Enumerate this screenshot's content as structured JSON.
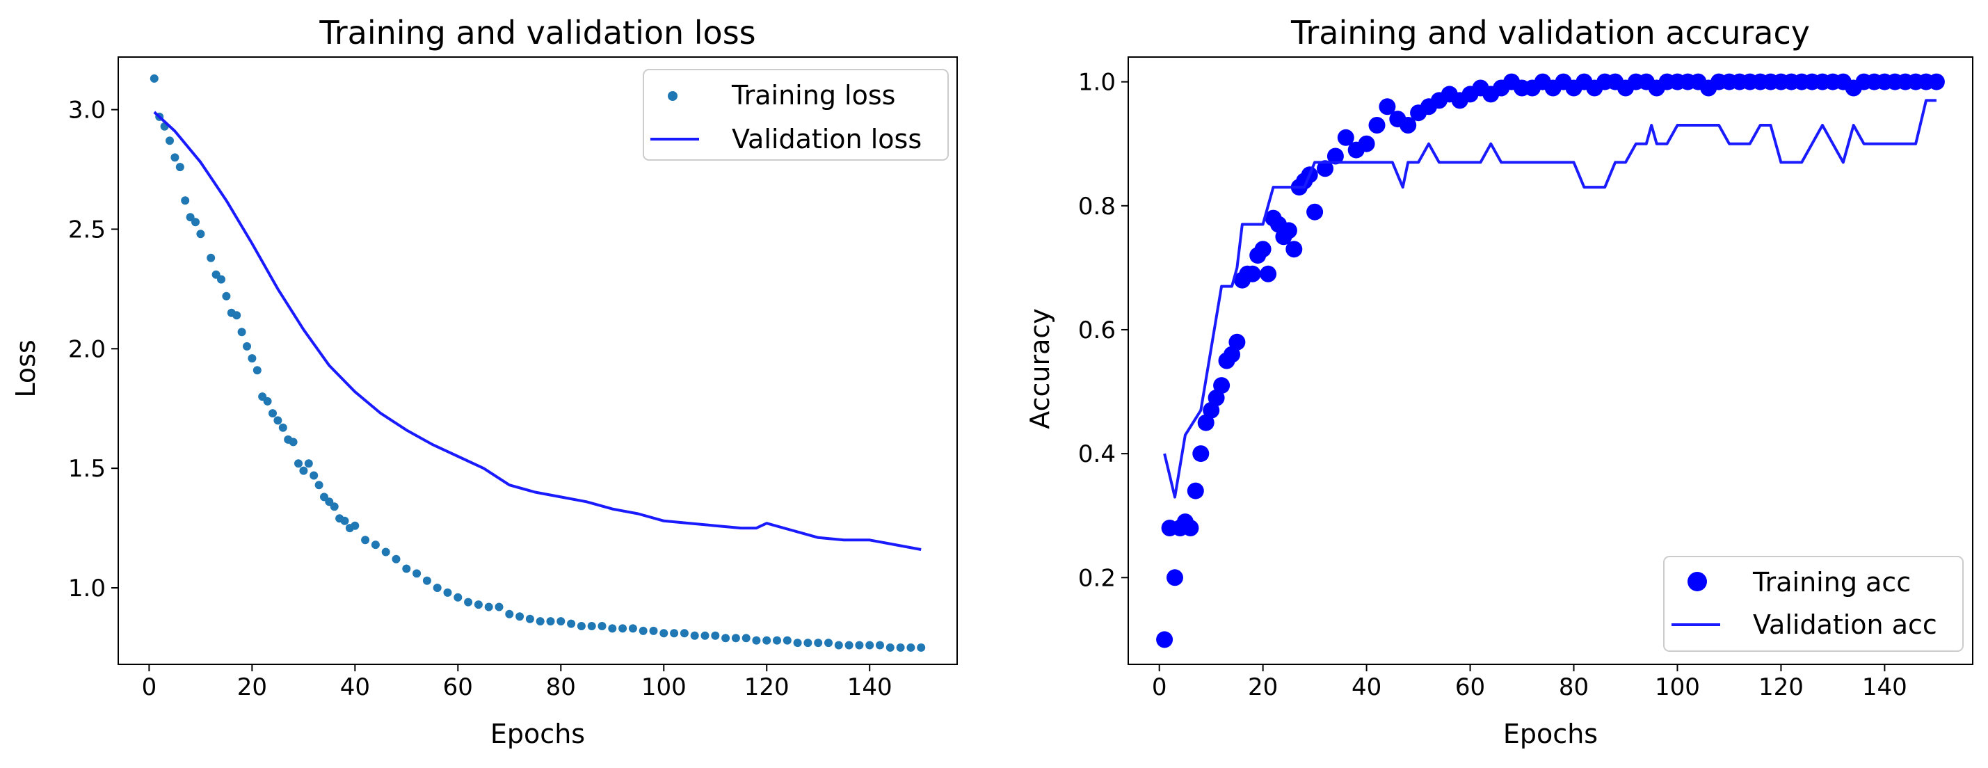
{
  "chart_data": [
    {
      "type": "line",
      "title": "Training and validation loss",
      "xlabel": "Epochs",
      "ylabel": "Loss",
      "xlim": [
        -6,
        157
      ],
      "ylim": [
        0.68,
        3.22
      ],
      "xticks": [
        0,
        20,
        40,
        60,
        80,
        100,
        120,
        140
      ],
      "yticks": [
        1.0,
        1.5,
        2.0,
        2.5,
        3.0
      ],
      "ytick_labels": [
        "1.0",
        "1.5",
        "2.0",
        "2.5",
        "3.0"
      ],
      "legend_position": "top-right",
      "series": [
        {
          "name": "Training loss",
          "style": "dots",
          "color": "#1f77b4",
          "points": [
            [
              1,
              3.13
            ],
            [
              2,
              2.97
            ],
            [
              3,
              2.93
            ],
            [
              4,
              2.87
            ],
            [
              5,
              2.8
            ],
            [
              6,
              2.76
            ],
            [
              7,
              2.62
            ],
            [
              8,
              2.55
            ],
            [
              9,
              2.53
            ],
            [
              10,
              2.48
            ],
            [
              12,
              2.38
            ],
            [
              13,
              2.31
            ],
            [
              14,
              2.29
            ],
            [
              15,
              2.22
            ],
            [
              16,
              2.15
            ],
            [
              17,
              2.14
            ],
            [
              18,
              2.07
            ],
            [
              19,
              2.01
            ],
            [
              20,
              1.96
            ],
            [
              21,
              1.91
            ],
            [
              22,
              1.8
            ],
            [
              23,
              1.78
            ],
            [
              24,
              1.73
            ],
            [
              25,
              1.7
            ],
            [
              26,
              1.67
            ],
            [
              27,
              1.62
            ],
            [
              28,
              1.61
            ],
            [
              29,
              1.52
            ],
            [
              30,
              1.49
            ],
            [
              31,
              1.52
            ],
            [
              32,
              1.47
            ],
            [
              33,
              1.43
            ],
            [
              34,
              1.38
            ],
            [
              35,
              1.36
            ],
            [
              36,
              1.34
            ],
            [
              37,
              1.29
            ],
            [
              38,
              1.28
            ],
            [
              39,
              1.25
            ],
            [
              40,
              1.26
            ],
            [
              42,
              1.2
            ],
            [
              44,
              1.18
            ],
            [
              46,
              1.15
            ],
            [
              48,
              1.12
            ],
            [
              50,
              1.08
            ],
            [
              52,
              1.06
            ],
            [
              54,
              1.03
            ],
            [
              56,
              1.0
            ],
            [
              58,
              0.98
            ],
            [
              60,
              0.96
            ],
            [
              62,
              0.94
            ],
            [
              64,
              0.93
            ],
            [
              66,
              0.92
            ],
            [
              68,
              0.92
            ],
            [
              70,
              0.89
            ],
            [
              72,
              0.88
            ],
            [
              74,
              0.87
            ],
            [
              76,
              0.86
            ],
            [
              78,
              0.86
            ],
            [
              80,
              0.86
            ],
            [
              82,
              0.85
            ],
            [
              84,
              0.84
            ],
            [
              86,
              0.84
            ],
            [
              88,
              0.84
            ],
            [
              90,
              0.83
            ],
            [
              92,
              0.83
            ],
            [
              94,
              0.83
            ],
            [
              96,
              0.82
            ],
            [
              98,
              0.82
            ],
            [
              100,
              0.81
            ],
            [
              102,
              0.81
            ],
            [
              104,
              0.81
            ],
            [
              106,
              0.8
            ],
            [
              108,
              0.8
            ],
            [
              110,
              0.8
            ],
            [
              112,
              0.79
            ],
            [
              114,
              0.79
            ],
            [
              116,
              0.79
            ],
            [
              118,
              0.78
            ],
            [
              120,
              0.78
            ],
            [
              122,
              0.78
            ],
            [
              124,
              0.78
            ],
            [
              126,
              0.77
            ],
            [
              128,
              0.77
            ],
            [
              130,
              0.77
            ],
            [
              132,
              0.77
            ],
            [
              134,
              0.76
            ],
            [
              136,
              0.76
            ],
            [
              138,
              0.76
            ],
            [
              140,
              0.76
            ],
            [
              142,
              0.76
            ],
            [
              144,
              0.75
            ],
            [
              146,
              0.75
            ],
            [
              148,
              0.75
            ],
            [
              150,
              0.75
            ]
          ]
        },
        {
          "name": "Validation loss",
          "style": "line",
          "color": "#1a1aff",
          "points": [
            [
              1,
              2.99
            ],
            [
              5,
              2.91
            ],
            [
              10,
              2.78
            ],
            [
              15,
              2.62
            ],
            [
              20,
              2.44
            ],
            [
              25,
              2.25
            ],
            [
              30,
              2.08
            ],
            [
              35,
              1.93
            ],
            [
              40,
              1.82
            ],
            [
              45,
              1.73
            ],
            [
              50,
              1.66
            ],
            [
              55,
              1.6
            ],
            [
              60,
              1.55
            ],
            [
              65,
              1.5
            ],
            [
              70,
              1.43
            ],
            [
              75,
              1.4
            ],
            [
              80,
              1.38
            ],
            [
              85,
              1.36
            ],
            [
              90,
              1.33
            ],
            [
              95,
              1.31
            ],
            [
              100,
              1.28
            ],
            [
              105,
              1.27
            ],
            [
              110,
              1.26
            ],
            [
              115,
              1.25
            ],
            [
              118,
              1.25
            ],
            [
              120,
              1.27
            ],
            [
              125,
              1.24
            ],
            [
              130,
              1.21
            ],
            [
              135,
              1.2
            ],
            [
              140,
              1.2
            ],
            [
              145,
              1.18
            ],
            [
              150,
              1.16
            ]
          ]
        }
      ]
    },
    {
      "type": "line",
      "title": "Training and validation accuracy",
      "xlabel": "Epochs",
      "ylabel": "Accuracy",
      "xlim": [
        -6,
        157
      ],
      "ylim": [
        0.06,
        1.04
      ],
      "xticks": [
        0,
        20,
        40,
        60,
        80,
        100,
        120,
        140
      ],
      "yticks": [
        0.2,
        0.4,
        0.6,
        0.8,
        1.0
      ],
      "ytick_labels": [
        "0.2",
        "0.4",
        "0.6",
        "0.8",
        "1.0"
      ],
      "legend_position": "bottom-right",
      "series": [
        {
          "name": "Training acc",
          "style": "dots",
          "color": "#0000ff",
          "points": [
            [
              1,
              0.1
            ],
            [
              2,
              0.28
            ],
            [
              3,
              0.2
            ],
            [
              4,
              0.28
            ],
            [
              5,
              0.29
            ],
            [
              6,
              0.28
            ],
            [
              7,
              0.34
            ],
            [
              8,
              0.4
            ],
            [
              9,
              0.45
            ],
            [
              10,
              0.47
            ],
            [
              11,
              0.49
            ],
            [
              12,
              0.51
            ],
            [
              13,
              0.55
            ],
            [
              14,
              0.56
            ],
            [
              15,
              0.58
            ],
            [
              16,
              0.68
            ],
            [
              17,
              0.69
            ],
            [
              18,
              0.69
            ],
            [
              19,
              0.72
            ],
            [
              20,
              0.73
            ],
            [
              21,
              0.69
            ],
            [
              22,
              0.78
            ],
            [
              23,
              0.77
            ],
            [
              24,
              0.75
            ],
            [
              25,
              0.76
            ],
            [
              26,
              0.73
            ],
            [
              27,
              0.83
            ],
            [
              28,
              0.84
            ],
            [
              29,
              0.85
            ],
            [
              30,
              0.79
            ],
            [
              32,
              0.86
            ],
            [
              34,
              0.88
            ],
            [
              36,
              0.91
            ],
            [
              38,
              0.89
            ],
            [
              40,
              0.9
            ],
            [
              42,
              0.93
            ],
            [
              44,
              0.96
            ],
            [
              46,
              0.94
            ],
            [
              48,
              0.93
            ],
            [
              50,
              0.95
            ],
            [
              52,
              0.96
            ],
            [
              54,
              0.97
            ],
            [
              56,
              0.98
            ],
            [
              58,
              0.97
            ],
            [
              60,
              0.98
            ],
            [
              62,
              0.99
            ],
            [
              64,
              0.98
            ],
            [
              66,
              0.99
            ],
            [
              68,
              1.0
            ],
            [
              70,
              0.99
            ],
            [
              72,
              0.99
            ],
            [
              74,
              1.0
            ],
            [
              76,
              0.99
            ],
            [
              78,
              1.0
            ],
            [
              80,
              0.99
            ],
            [
              82,
              1.0
            ],
            [
              84,
              0.99
            ],
            [
              86,
              1.0
            ],
            [
              88,
              1.0
            ],
            [
              90,
              0.99
            ],
            [
              92,
              1.0
            ],
            [
              94,
              1.0
            ],
            [
              96,
              0.99
            ],
            [
              98,
              1.0
            ],
            [
              100,
              1.0
            ],
            [
              102,
              1.0
            ],
            [
              104,
              1.0
            ],
            [
              106,
              0.99
            ],
            [
              108,
              1.0
            ],
            [
              110,
              1.0
            ],
            [
              112,
              1.0
            ],
            [
              114,
              1.0
            ],
            [
              116,
              1.0
            ],
            [
              118,
              1.0
            ],
            [
              120,
              1.0
            ],
            [
              122,
              1.0
            ],
            [
              124,
              1.0
            ],
            [
              126,
              1.0
            ],
            [
              128,
              1.0
            ],
            [
              130,
              1.0
            ],
            [
              132,
              1.0
            ],
            [
              134,
              0.99
            ],
            [
              136,
              1.0
            ],
            [
              138,
              1.0
            ],
            [
              140,
              1.0
            ],
            [
              142,
              1.0
            ],
            [
              144,
              1.0
            ],
            [
              146,
              1.0
            ],
            [
              148,
              1.0
            ],
            [
              150,
              1.0
            ]
          ]
        },
        {
          "name": "Validation acc",
          "style": "line",
          "color": "#1a1aff",
          "points": [
            [
              1,
              0.4
            ],
            [
              3,
              0.33
            ],
            [
              5,
              0.43
            ],
            [
              8,
              0.47
            ],
            [
              10,
              0.57
            ],
            [
              12,
              0.67
            ],
            [
              14,
              0.67
            ],
            [
              15,
              0.7
            ],
            [
              16,
              0.77
            ],
            [
              20,
              0.77
            ],
            [
              22,
              0.83
            ],
            [
              28,
              0.83
            ],
            [
              30,
              0.87
            ],
            [
              33,
              0.87
            ],
            [
              35,
              0.87
            ],
            [
              45,
              0.87
            ],
            [
              47,
              0.83
            ],
            [
              48,
              0.87
            ],
            [
              50,
              0.87
            ],
            [
              52,
              0.9
            ],
            [
              54,
              0.87
            ],
            [
              60,
              0.87
            ],
            [
              62,
              0.87
            ],
            [
              64,
              0.9
            ],
            [
              66,
              0.87
            ],
            [
              80,
              0.87
            ],
            [
              82,
              0.83
            ],
            [
              86,
              0.83
            ],
            [
              88,
              0.87
            ],
            [
              90,
              0.87
            ],
            [
              92,
              0.9
            ],
            [
              94,
              0.9
            ],
            [
              95,
              0.93
            ],
            [
              96,
              0.9
            ],
            [
              98,
              0.9
            ],
            [
              100,
              0.93
            ],
            [
              108,
              0.93
            ],
            [
              110,
              0.9
            ],
            [
              112,
              0.9
            ],
            [
              114,
              0.9
            ],
            [
              116,
              0.93
            ],
            [
              118,
              0.93
            ],
            [
              120,
              0.87
            ],
            [
              124,
              0.87
            ],
            [
              126,
              0.9
            ],
            [
              128,
              0.93
            ],
            [
              130,
              0.9
            ],
            [
              132,
              0.87
            ],
            [
              134,
              0.93
            ],
            [
              136,
              0.9
            ],
            [
              146,
              0.9
            ],
            [
              148,
              0.97
            ],
            [
              150,
              0.97
            ]
          ]
        }
      ]
    }
  ]
}
